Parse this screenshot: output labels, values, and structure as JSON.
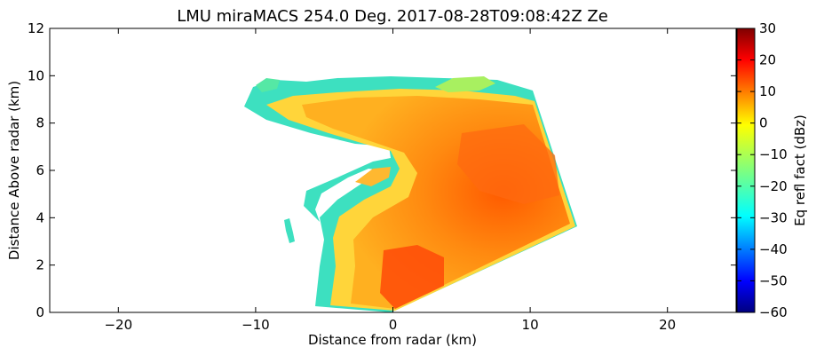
{
  "chart_data": {
    "type": "heatmap",
    "title": "LMU miraMACS 254.0 Deg. 2017-08-28T09:08:42Z  Ze",
    "xlabel": "Distance from radar (km)",
    "ylabel": "Distance Above radar  (km)",
    "xlim": [
      -25,
      25
    ],
    "ylim": [
      0,
      12
    ],
    "xticks": [
      -20,
      -10,
      0,
      10,
      20
    ],
    "yticks": [
      0,
      2,
      4,
      6,
      8,
      10,
      12
    ],
    "colorbar": {
      "label": "Eq refl fact (dBz)",
      "range": [
        -60,
        30
      ],
      "ticks": [
        -60,
        -50,
        -40,
        -30,
        -20,
        -10,
        0,
        10,
        20,
        30
      ],
      "colormap": "jet"
    },
    "field": {
      "description_cells": [
        {
          "x": 0.5,
          "y": 0.5,
          "dbz": 18
        },
        {
          "x": 3,
          "y": 2,
          "dbz": 10
        },
        {
          "x": 8,
          "y": 6,
          "dbz": 16
        },
        {
          "x": 5,
          "y": 8,
          "dbz": 8
        },
        {
          "x": -3,
          "y": 3,
          "dbz": 5
        },
        {
          "x": -5,
          "y": 8,
          "dbz": 0
        },
        {
          "x": -8,
          "y": 9.8,
          "dbz": -20
        }
      ]
    },
    "colors": {
      "axis": "#000000",
      "background": "#ffffff"
    }
  }
}
